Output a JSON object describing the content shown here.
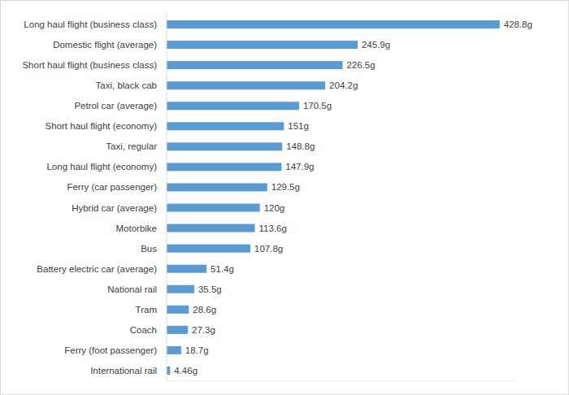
{
  "chart_data": {
    "type": "bar",
    "orientation": "horizontal",
    "categories": [
      "Long haul flight (business class)",
      "Domestic flight (average)",
      "Short haul flight (business class)",
      "Taxi, black cab",
      "Petrol car (average)",
      "Short haul flight (economy)",
      "Taxi, regular",
      "Long haul flight (economy)",
      "Ferry (car passenger)",
      "Hybrid car (average)",
      "Motorbike",
      "Bus",
      "Battery electric car (average)",
      "National rail",
      "Tram",
      "Coach",
      "Ferry (foot passenger)",
      "International rail"
    ],
    "values": [
      428.8,
      245.9,
      226.5,
      204.2,
      170.5,
      151,
      148.8,
      147.9,
      129.5,
      120,
      113.6,
      107.8,
      51.4,
      35.5,
      28.6,
      27.3,
      18.7,
      4.46
    ],
    "value_labels": [
      "428.8g",
      "245.9g",
      "226.5g",
      "204.2g",
      "170.5g",
      "151g",
      "148.8g",
      "147.9g",
      "129.5g",
      "120g",
      "113.6g",
      "107.8g",
      "51.4g",
      "35.5g",
      "28.6g",
      "27.3g",
      "18.7g",
      "4.46g"
    ],
    "color": "#5b9bd5",
    "xlim": [
      0,
      450
    ],
    "grid": false,
    "data_labels": true,
    "tick_labels": false
  }
}
